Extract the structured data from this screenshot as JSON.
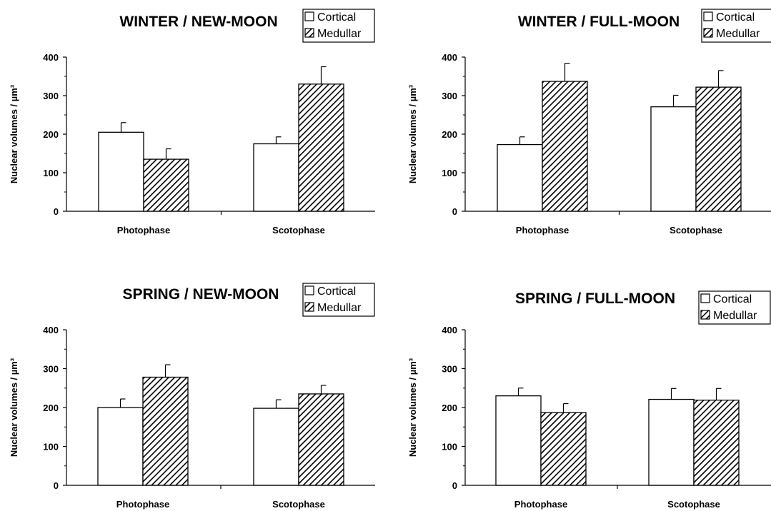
{
  "chart_data": [
    {
      "type": "bar",
      "title": "WINTER / NEW-MOON",
      "ylabel": "Nuclear volumes / µm³",
      "categories": [
        "Photophase",
        "Scotophase"
      ],
      "yticks": [
        "0",
        "100",
        "200",
        "300",
        "400"
      ],
      "ylim": [
        0,
        400
      ],
      "series": [
        {
          "name": "Cortical",
          "values": [
            205,
            175
          ],
          "errors": [
            25,
            18
          ]
        },
        {
          "name": "Medullar",
          "values": [
            135,
            330
          ],
          "errors": [
            27,
            45
          ]
        }
      ],
      "legend": [
        "Cortical",
        "Medullar"
      ],
      "legend_position": "top-right"
    },
    {
      "type": "bar",
      "title": "WINTER / FULL-MOON",
      "ylabel": "Nuclear volumes / µm³",
      "categories": [
        "Photophase",
        "Scotophase"
      ],
      "yticks": [
        "0",
        "100",
        "200",
        "300",
        "400"
      ],
      "ylim": [
        0,
        400
      ],
      "series": [
        {
          "name": "Cortical",
          "values": [
            173,
            271
          ],
          "errors": [
            20,
            30
          ]
        },
        {
          "name": "Medullar",
          "values": [
            337,
            322
          ],
          "errors": [
            47,
            43
          ]
        }
      ],
      "legend": [
        "Cortical",
        "Medullar"
      ],
      "legend_position": "top-right"
    },
    {
      "type": "bar",
      "title": "SPRING / NEW-MOON",
      "ylabel": "Nuclear volumes / µm³",
      "categories": [
        "Photophase",
        "Scotophase"
      ],
      "yticks": [
        "0",
        "100",
        "200",
        "300",
        "400"
      ],
      "ylim": [
        0,
        400
      ],
      "series": [
        {
          "name": "Cortical",
          "values": [
            200,
            198
          ],
          "errors": [
            22,
            22
          ]
        },
        {
          "name": "Medullar",
          "values": [
            278,
            235
          ],
          "errors": [
            32,
            22
          ]
        }
      ],
      "legend": [
        "Cortical",
        "Medullar"
      ],
      "legend_position": "top-right"
    },
    {
      "type": "bar",
      "title": "SPRING / FULL-MOON",
      "ylabel": "Nuclear volumes / µm³",
      "categories": [
        "Photophase",
        "Scotophase"
      ],
      "yticks": [
        "0",
        "100",
        "200",
        "300",
        "400"
      ],
      "ylim": [
        0,
        400
      ],
      "series": [
        {
          "name": "Cortical",
          "values": [
            230,
            221
          ],
          "errors": [
            20,
            28
          ]
        },
        {
          "name": "Medullar",
          "values": [
            187,
            219
          ],
          "errors": [
            23,
            30
          ]
        }
      ],
      "legend": [
        "Cortical",
        "Medullar"
      ],
      "legend_position": "top-right"
    }
  ]
}
